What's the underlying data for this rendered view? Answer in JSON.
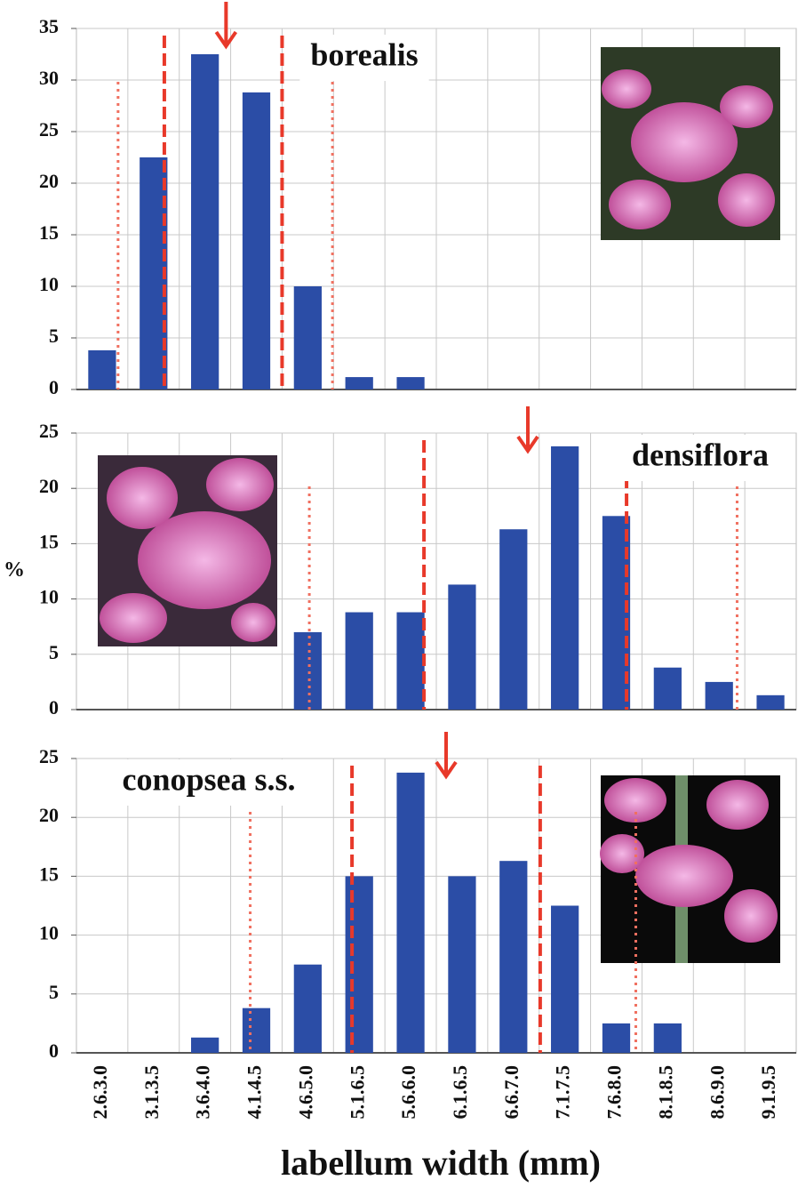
{
  "chart_data": [
    {
      "type": "bar",
      "title": "borealis",
      "color": "#2b4da6",
      "values": [
        3.8,
        22.5,
        32.5,
        28.8,
        10,
        1.2,
        1.2,
        0,
        0,
        0,
        0,
        0,
        0,
        0
      ],
      "ylim": [
        0,
        35
      ],
      "yticks": [
        0,
        5,
        10,
        15,
        20,
        25,
        30,
        35
      ],
      "grid": true,
      "arrow_x": 2.41,
      "dashed_x": [
        1.21,
        3.5
      ],
      "dotted_x": [
        0.31,
        4.48
      ]
    },
    {
      "type": "bar",
      "title": "densiflora",
      "ylabel": "%",
      "color": "#2b4da6",
      "values": [
        0,
        0,
        0,
        0,
        7,
        8.8,
        8.8,
        11.3,
        16.3,
        23.8,
        17.5,
        3.8,
        2.5,
        1.3
      ],
      "ylim": [
        0,
        25
      ],
      "yticks": [
        0,
        5,
        10,
        15,
        20,
        25
      ],
      "grid": true,
      "arrow_x": 8.28,
      "dashed_x": [
        6.26,
        10.2
      ],
      "dotted_x": [
        4.03,
        12.35
      ]
    },
    {
      "type": "bar",
      "title": "conopsea s.s.",
      "xlabel": "labellum width (mm)",
      "color": "#2b4da6",
      "categories": [
        "2.6.3.0",
        "3.1.3.5",
        "3.6.4.0",
        "4.1.4.5",
        "4.6.5.0",
        "5.1.6.5",
        "5.6.6.0",
        "6.1.6.5",
        "6.6.7.0",
        "7.1.7.5",
        "7.6.8.0",
        "8.1.8.5",
        "8.6.9.0",
        "9.1.9.5"
      ],
      "values": [
        0,
        0,
        1.3,
        3.8,
        7.5,
        15,
        23.8,
        15,
        16.3,
        12.5,
        2.5,
        2.5,
        0,
        0
      ],
      "ylim": [
        0,
        25
      ],
      "yticks": [
        0,
        5,
        10,
        15,
        20,
        25
      ],
      "grid": true,
      "arrow_x": 6.69,
      "dashed_x": [
        4.86,
        8.52
      ],
      "dotted_x": [
        2.88,
        10.38
      ]
    }
  ]
}
